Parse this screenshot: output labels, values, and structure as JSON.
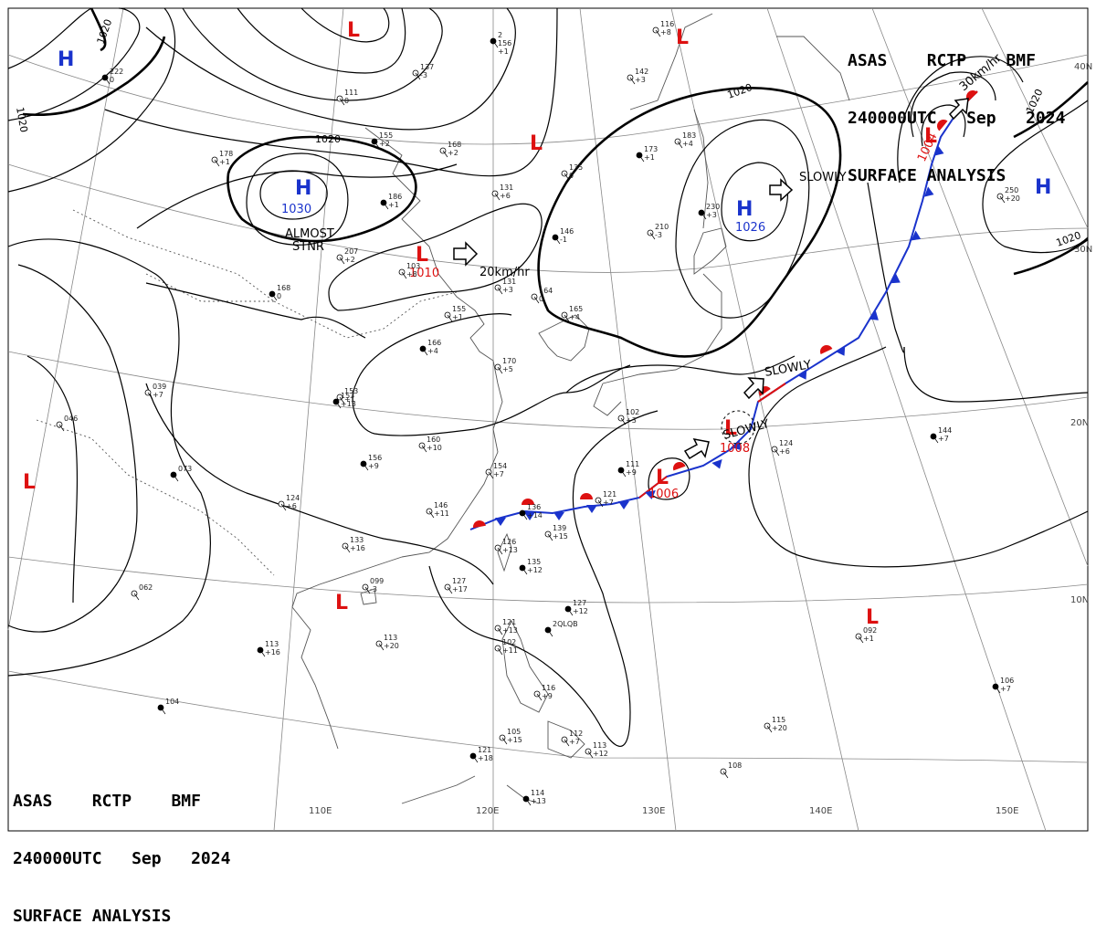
{
  "header": {
    "line1": [
      "ASAS",
      "RCTP",
      "BMF"
    ],
    "line2": [
      "240000UTC",
      "Sep",
      "2024"
    ],
    "line3": "SURFACE ANALYSIS"
  },
  "colors": {
    "high": "#1a33cc",
    "low": "#dd1111",
    "isobar": "#000000",
    "grid": "#888888",
    "coast": "#555555",
    "cold_front": "#1a33cc",
    "warm_front": "#dd1111"
  },
  "lat_labels": [
    "40N",
    "30N",
    "20N",
    "10N"
  ],
  "lon_labels": [
    "110E",
    "120E",
    "130E",
    "140E",
    "150E"
  ],
  "isobar_labels": [
    "1020",
    "1020",
    "1020",
    "1020",
    "1020",
    "1020"
  ],
  "pressure_centers": [
    {
      "type": "H",
      "value": ""
    },
    {
      "type": "H",
      "value": "1030"
    },
    {
      "type": "H",
      "value": "1026"
    },
    {
      "type": "H",
      "value": ""
    },
    {
      "type": "L",
      "value": ""
    },
    {
      "type": "L",
      "value": ""
    },
    {
      "type": "L",
      "value": ""
    },
    {
      "type": "L",
      "value": "1010"
    },
    {
      "type": "L",
      "value": "1004"
    },
    {
      "type": "L",
      "value": "1008"
    },
    {
      "type": "L",
      "value": "1006"
    },
    {
      "type": "L",
      "value": ""
    },
    {
      "type": "L",
      "value": ""
    },
    {
      "type": "L",
      "value": ""
    }
  ],
  "annotations": [
    {
      "text": "ALMOST"
    },
    {
      "text": "STNR"
    },
    {
      "text": "20km/hr"
    },
    {
      "text": "SLOWLY"
    },
    {
      "text": "30km/hr"
    },
    {
      "text": "SLOWLY"
    },
    {
      "text": "SLOWLY"
    }
  ],
  "station_plots": [
    [
      "2",
      "156",
      "+1"
    ],
    [
      "137",
      "-3"
    ],
    [
      "111",
      "0"
    ],
    [
      "155",
      "+2"
    ],
    [
      "168",
      "+2"
    ],
    [
      "178",
      "+1"
    ],
    [
      "186",
      "+1"
    ],
    [
      "131",
      "+6"
    ],
    [
      "135",
      "0"
    ],
    [
      "173",
      "+1"
    ],
    [
      "183",
      "+4"
    ],
    [
      "210",
      "-3"
    ],
    [
      "230",
      "+3"
    ],
    [
      "207",
      "+2"
    ],
    [
      "103",
      "+8"
    ],
    [
      "168",
      "0"
    ],
    [
      "153",
      "+1"
    ],
    [
      "131",
      "+3"
    ],
    [
      "146",
      "-1"
    ],
    [
      "164",
      "0"
    ],
    [
      "165",
      "+4"
    ],
    [
      "166",
      "+4"
    ],
    [
      "155",
      "+1"
    ],
    [
      "170",
      "+5"
    ],
    [
      "153",
      "+13"
    ],
    [
      "160",
      "+10"
    ],
    [
      "154",
      "+7"
    ],
    [
      "156",
      "+9"
    ],
    [
      "039",
      "+7"
    ],
    [
      "046",
      ""
    ],
    [
      "073",
      ""
    ],
    [
      "124",
      "+6"
    ],
    [
      "146",
      "+11"
    ],
    [
      "136",
      "+14"
    ],
    [
      "139",
      "+15"
    ],
    [
      "121",
      "+7"
    ],
    [
      "111",
      "+9"
    ],
    [
      "102",
      "+3"
    ],
    [
      "124",
      "+6"
    ],
    [
      "144",
      "+7"
    ],
    [
      "133",
      "+16"
    ],
    [
      "126",
      "+13"
    ],
    [
      "135",
      "+12"
    ],
    [
      "099",
      "-3"
    ],
    [
      "127",
      "+17"
    ],
    [
      "127",
      "+12"
    ],
    [
      "121",
      "+13"
    ],
    [
      "102",
      "+11"
    ],
    [
      "113",
      "+16"
    ],
    [
      "113",
      "+20"
    ],
    [
      "062",
      ""
    ],
    [
      "104",
      ""
    ],
    [
      "116",
      "+9"
    ],
    [
      "105",
      "+15"
    ],
    [
      "121",
      "+18"
    ],
    [
      "112",
      "+7"
    ],
    [
      "113",
      "+12"
    ],
    [
      "114",
      "+13"
    ],
    [
      "108",
      ""
    ],
    [
      "115",
      "+20"
    ],
    [
      "106",
      "+7"
    ],
    [
      "092",
      "+1"
    ],
    [
      "250",
      "+20"
    ],
    [
      "222",
      "0"
    ],
    [
      "116",
      "+8"
    ],
    [
      "142",
      "+3"
    ],
    [
      "2QLQB",
      ""
    ]
  ]
}
